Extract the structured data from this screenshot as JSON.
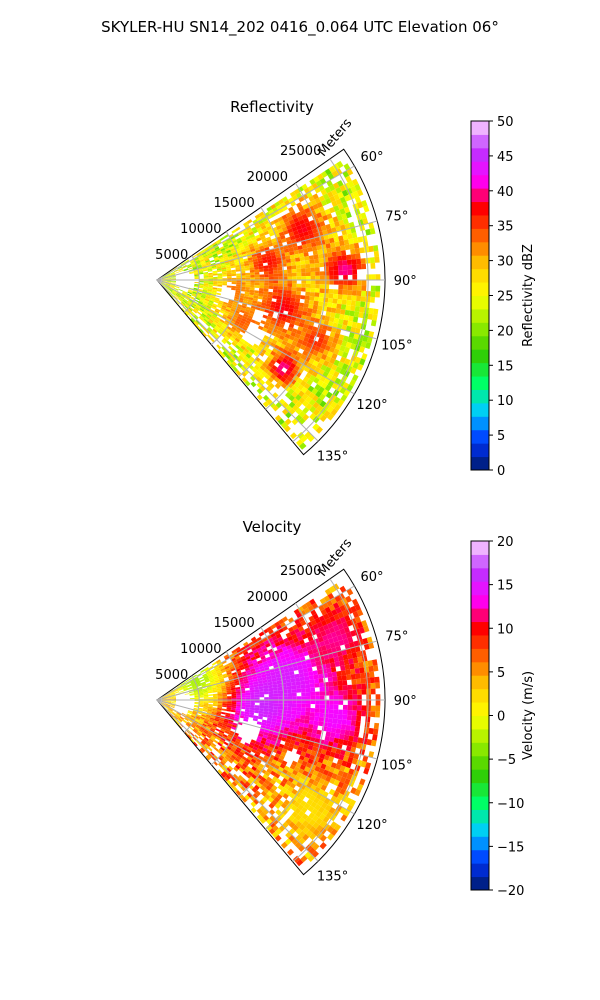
{
  "figure": {
    "suptitle": "SKYLER-HU  SN14_202  0416_0.064 UTC Elevation 06°"
  },
  "chart_data": [
    {
      "type": "heatmap",
      "projection": "polar-sector",
      "title": "Reflectivity",
      "range_label": "Meters",
      "range_ticks": [
        5000,
        10000,
        15000,
        20000,
        25000
      ],
      "range_tick_labels": [
        "5000",
        "10000",
        "15000",
        "20000",
        "25000"
      ],
      "range_max": 27000,
      "azimuth_range": [
        55,
        140
      ],
      "azimuth_ticks": [
        60,
        75,
        90,
        105,
        120,
        135
      ],
      "azimuth_tick_labels": [
        "60°",
        "75°",
        "90°",
        "105°",
        "120°",
        "135°"
      ],
      "grid": true,
      "colorbar": {
        "label": "Reflectivity dBZ",
        "vmin": 0,
        "vmax": 50,
        "ticks": [
          0,
          5,
          10,
          15,
          20,
          25,
          30,
          35,
          40,
          45,
          50
        ],
        "tick_labels": [
          "0",
          "5",
          "10",
          "15",
          "20",
          "25",
          "30",
          "35",
          "40",
          "45",
          "50"
        ]
      },
      "colors": [
        "#001a66",
        "#0033ff",
        "#00ccff",
        "#00ff66",
        "#33cc00",
        "#99ee00",
        "#ffff00",
        "#ffcc00",
        "#ff6600",
        "#ff0000",
        "#ff00ff",
        "#bb33ff",
        "#ffd9ff"
      ],
      "field": {
        "base": 24,
        "clusters": [
          {
            "az": 70,
            "r": 18000,
            "value": 38,
            "size": 2200
          },
          {
            "az": 80,
            "r": 13000,
            "value": 37,
            "size": 1800
          },
          {
            "az": 86,
            "r": 22000,
            "value": 40,
            "size": 2000
          },
          {
            "az": 102,
            "r": 15000,
            "value": 38,
            "size": 2500
          },
          {
            "az": 110,
            "r": 20000,
            "value": 36,
            "size": 1800
          },
          {
            "az": 124,
            "r": 18000,
            "value": 40,
            "size": 1500
          },
          {
            "az": 97,
            "r": 9000,
            "value": 33,
            "size": 1600
          },
          {
            "az": 115,
            "r": 11000,
            "value": 34,
            "size": 1500
          }
        ],
        "gaps": [
          {
            "az": 90,
            "r": 3000,
            "size": 1300
          },
          {
            "az": 100,
            "r": 8000,
            "size": 1000
          },
          {
            "az": 118,
            "r": 13000,
            "size": 1200
          },
          {
            "az": 108,
            "r": 12500,
            "size": 800
          }
        ]
      }
    },
    {
      "type": "heatmap",
      "projection": "polar-sector",
      "title": "Velocity",
      "range_label": "Meters",
      "range_ticks": [
        5000,
        10000,
        15000,
        20000,
        25000
      ],
      "range_tick_labels": [
        "5000",
        "10000",
        "15000",
        "20000",
        "25000"
      ],
      "range_max": 27000,
      "azimuth_range": [
        55,
        140
      ],
      "azimuth_ticks": [
        60,
        75,
        90,
        105,
        120,
        135
      ],
      "azimuth_tick_labels": [
        "60°",
        "75°",
        "90°",
        "105°",
        "120°",
        "135°"
      ],
      "grid": true,
      "colorbar": {
        "label": "Velocity (m/s)",
        "vmin": -20,
        "vmax": 20,
        "ticks": [
          -20,
          -15,
          -10,
          -5,
          0,
          5,
          10,
          15,
          20
        ],
        "tick_labels": [
          "−20",
          "−15",
          "−10",
          "−5",
          "0",
          "5",
          "10",
          "15",
          "20"
        ]
      },
      "colors": [
        "#001a66",
        "#0033ff",
        "#00ccff",
        "#00ff66",
        "#33cc00",
        "#99ee00",
        "#ffff00",
        "#ffcc00",
        "#ff6600",
        "#ff0000",
        "#ff00ff",
        "#bb33ff",
        "#ffd9ff"
      ],
      "field": {
        "base": 5,
        "clusters": [
          {
            "az": 80,
            "r": 16000,
            "value": 15,
            "size": 4000
          },
          {
            "az": 92,
            "r": 12000,
            "value": 16,
            "size": 3500
          },
          {
            "az": 95,
            "r": 21000,
            "value": 14,
            "size": 3000
          },
          {
            "az": 70,
            "r": 22000,
            "value": 12,
            "size": 2500
          },
          {
            "az": 62,
            "r": 5000,
            "value": -3,
            "size": 2500
          },
          {
            "az": 125,
            "r": 22000,
            "value": 2,
            "size": 2500
          }
        ],
        "gaps": [
          {
            "az": 95,
            "r": 3000,
            "size": 1300
          },
          {
            "az": 108,
            "r": 11000,
            "size": 1400
          },
          {
            "az": 112,
            "r": 17000,
            "size": 900
          }
        ]
      }
    }
  ]
}
